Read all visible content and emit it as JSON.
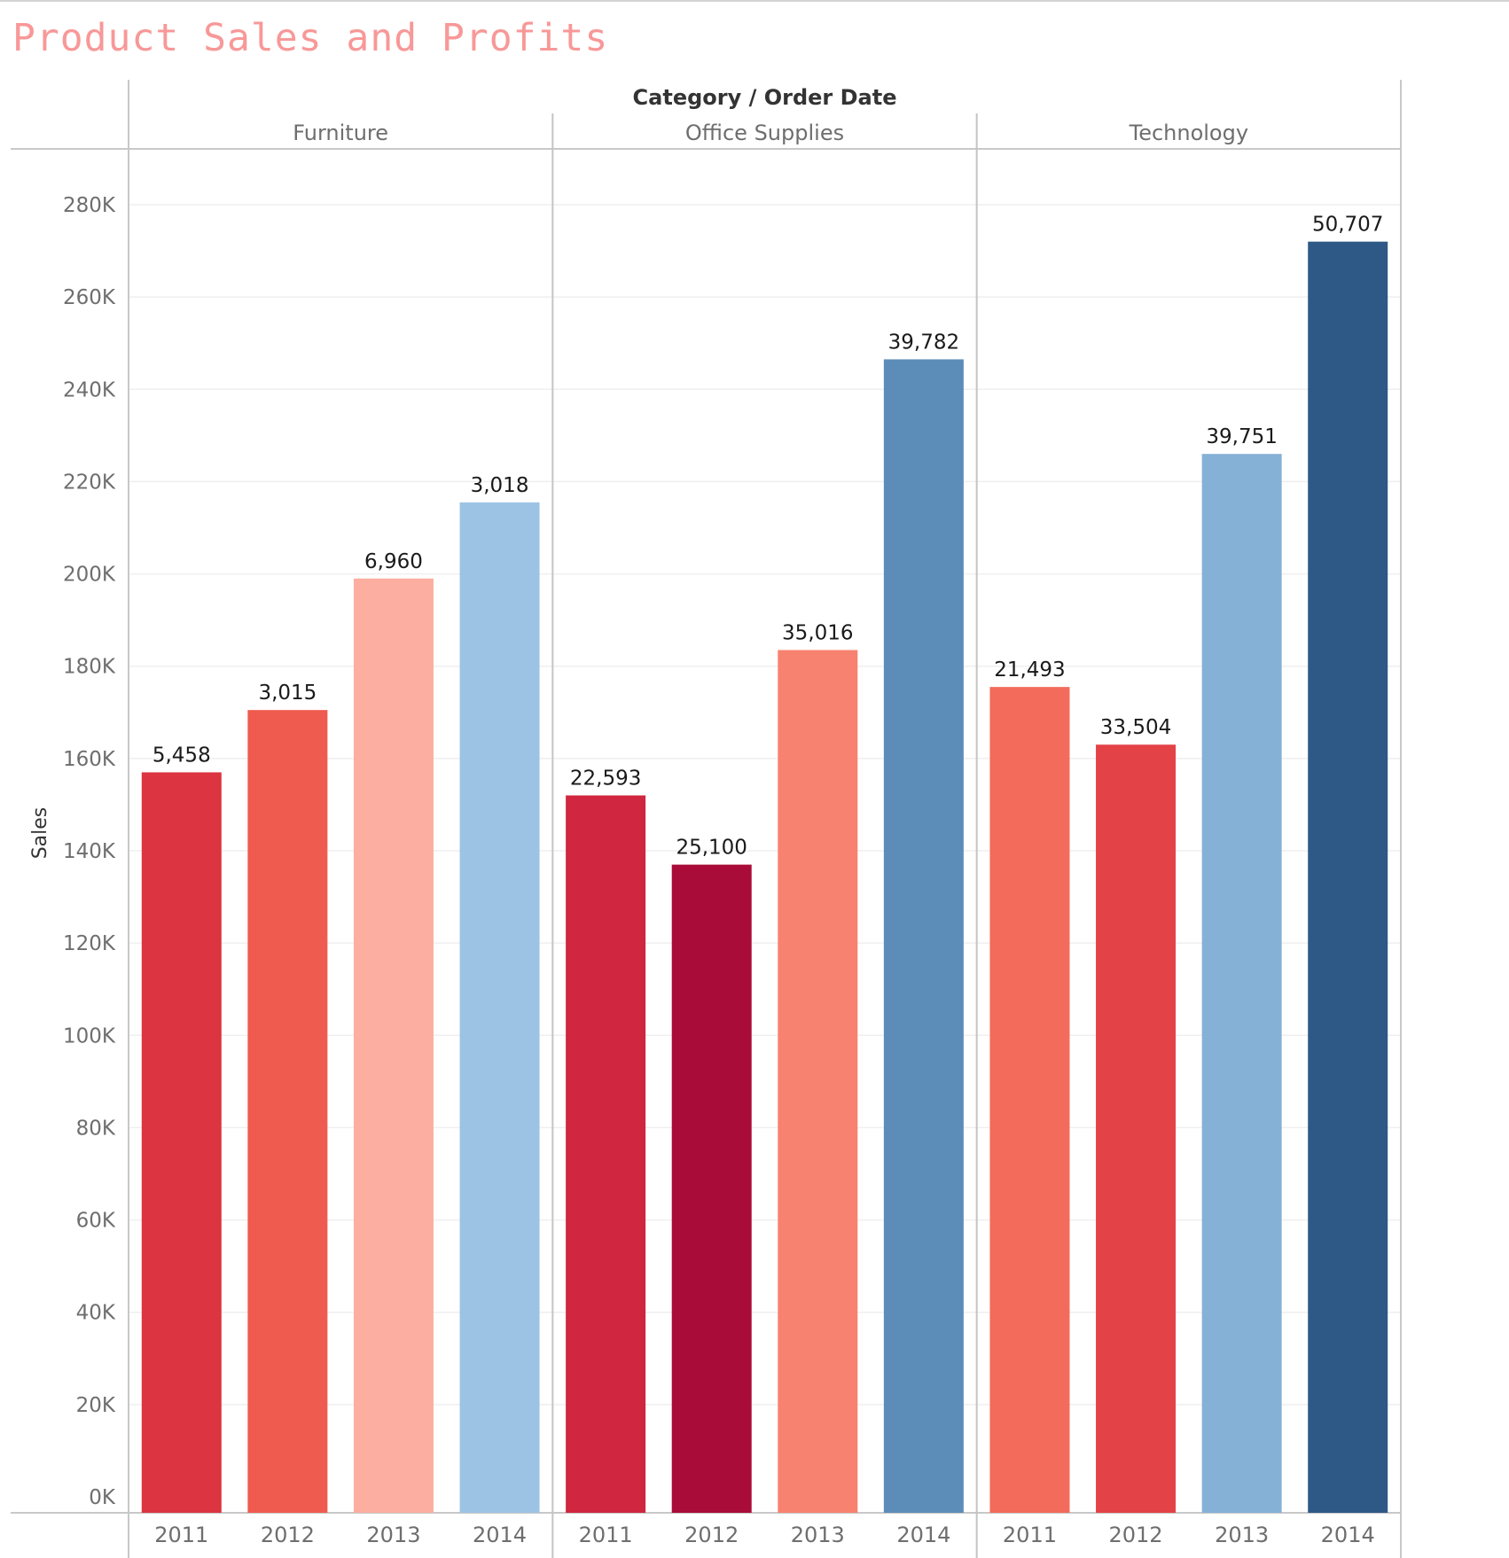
{
  "chart_data": {
    "type": "bar",
    "title": "Product Sales and Profits",
    "title_color": "#f89898",
    "column_header": "Category / Order Date",
    "ylabel": "Sales",
    "ylim": [
      0,
      280000
    ],
    "yticks": [
      0,
      20000,
      40000,
      60000,
      80000,
      100000,
      120000,
      140000,
      160000,
      180000,
      200000,
      220000,
      240000,
      260000,
      280000
    ],
    "ytick_labels": [
      "0K",
      "20K",
      "40K",
      "60K",
      "80K",
      "100K",
      "120K",
      "140K",
      "160K",
      "180K",
      "200K",
      "220K",
      "240K",
      "260K",
      "280K"
    ],
    "grid": true,
    "panes": [
      {
        "category": "Furniture",
        "bars": [
          {
            "year": "2011",
            "sales": 157000,
            "label": "5,458",
            "color": "#dc3441"
          },
          {
            "year": "2012",
            "sales": 170500,
            "label": "3,015",
            "color": "#ef5b4f"
          },
          {
            "year": "2013",
            "sales": 199000,
            "label": "6,960",
            "color": "#fcaea0"
          },
          {
            "year": "2014",
            "sales": 215500,
            "label": "3,018",
            "color": "#9dc3e4"
          }
        ]
      },
      {
        "category": "Office Supplies",
        "bars": [
          {
            "year": "2011",
            "sales": 152000,
            "label": "22,593",
            "color": "#d0263f"
          },
          {
            "year": "2012",
            "sales": 137000,
            "label": "25,100",
            "color": "#a90c38"
          },
          {
            "year": "2013",
            "sales": 183500,
            "label": "35,016",
            "color": "#f7826f"
          },
          {
            "year": "2014",
            "sales": 246500,
            "label": "39,782",
            "color": "#5b8db8"
          }
        ]
      },
      {
        "category": "Technology",
        "bars": [
          {
            "year": "2011",
            "sales": 175500,
            "label": "21,493",
            "color": "#f26b5b"
          },
          {
            "year": "2012",
            "sales": 163000,
            "label": "33,504",
            "color": "#e34246"
          },
          {
            "year": "2013",
            "sales": 226000,
            "label": "39,751",
            "color": "#86b1d6"
          },
          {
            "year": "2014",
            "sales": 272000,
            "label": "50,707",
            "color": "#2e5986"
          }
        ]
      }
    ]
  }
}
